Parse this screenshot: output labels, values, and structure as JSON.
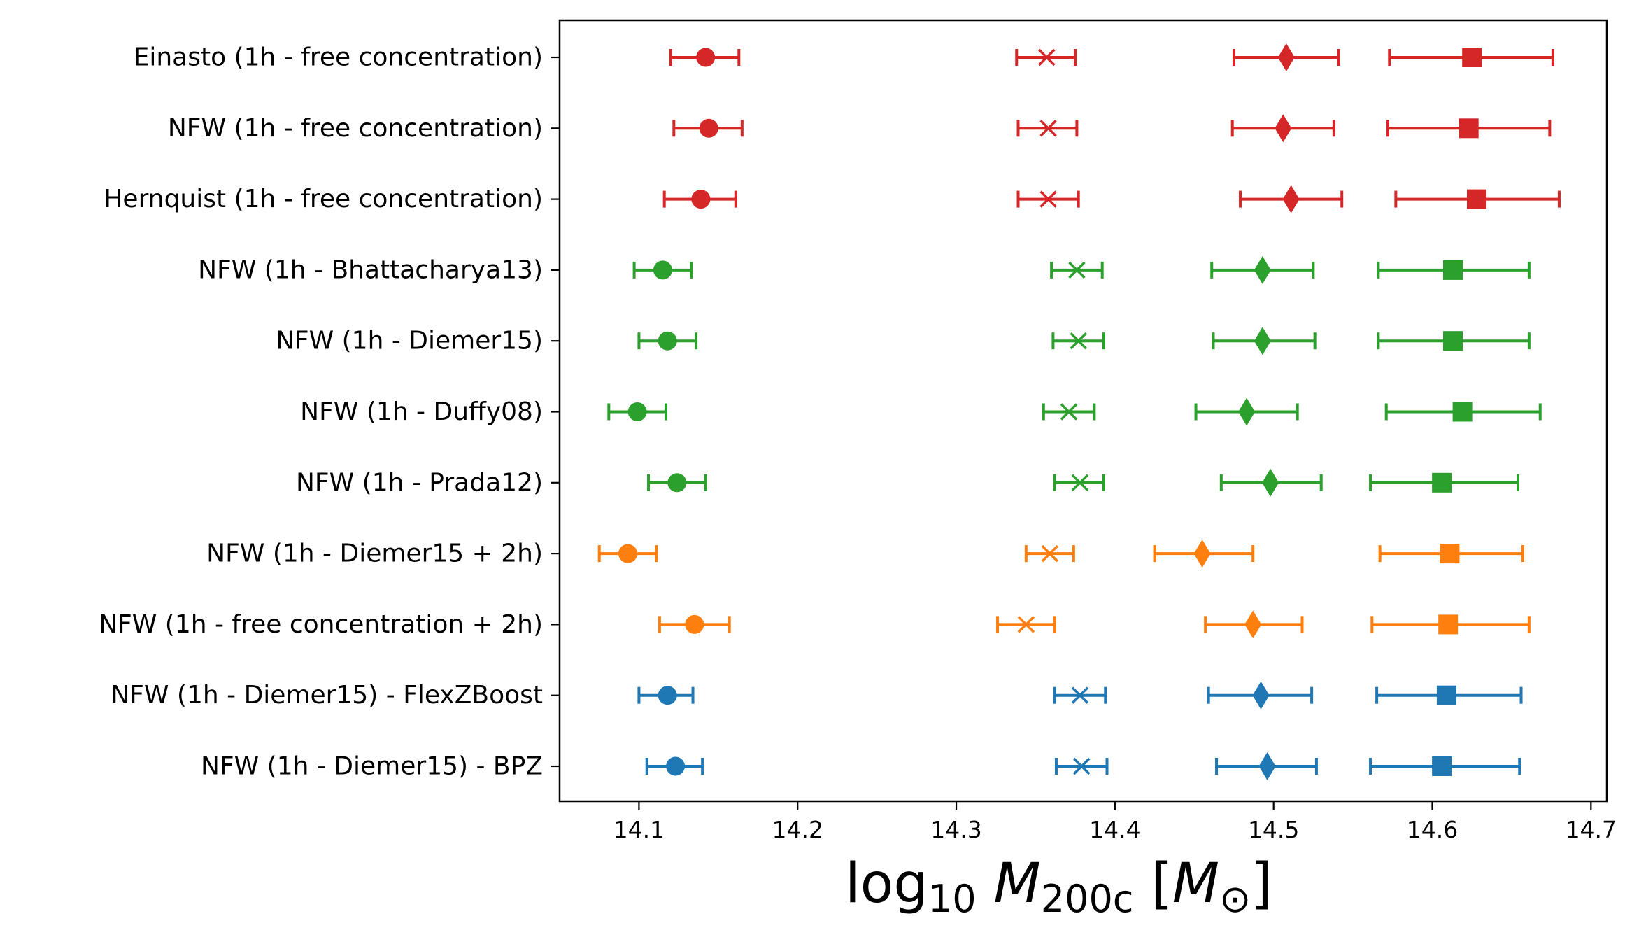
{
  "chart_data": {
    "type": "errorbar",
    "xlabel": {
      "prefix": "log",
      "prefix_sub": "10",
      "var": "M",
      "var_sub": "200c",
      "unit_open": " [",
      "unit_var": "M",
      "unit_sub": "⊙",
      "unit_close": "]"
    },
    "xlim": [
      14.05,
      14.71
    ],
    "xticks": [
      14.1,
      14.2,
      14.3,
      14.4,
      14.5,
      14.6,
      14.7
    ],
    "xtick_labels": [
      "14.1",
      "14.2",
      "14.3",
      "14.4",
      "14.5",
      "14.6",
      "14.7"
    ],
    "categories": [
      "Einasto (1h - free concentration)",
      "NFW (1h - free concentration)",
      "Hernquist (1h - free concentration)",
      "NFW (1h - Bhattacharya13)",
      "NFW (1h - Diemer15)",
      "NFW (1h - Duffy08)",
      "NFW (1h - Prada12)",
      "NFW (1h - Diemer15 + 2h)",
      "NFW (1h - free concentration + 2h)",
      "NFW (1h - Diemer15) - FlexZBoost",
      "NFW (1h - Diemer15) - BPZ"
    ],
    "colors": [
      "#d62728",
      "#d62728",
      "#d62728",
      "#2ca02c",
      "#2ca02c",
      "#2ca02c",
      "#2ca02c",
      "#ff7f0e",
      "#ff7f0e",
      "#1f77b4",
      "#1f77b4"
    ],
    "series": [
      {
        "marker": "circle",
        "values": [
          14.142,
          14.144,
          14.139,
          14.115,
          14.118,
          14.099,
          14.124,
          14.093,
          14.135,
          14.118,
          14.123
        ],
        "lo": [
          14.12,
          14.122,
          14.116,
          14.097,
          14.1,
          14.081,
          14.106,
          14.075,
          14.113,
          14.1,
          14.105
        ],
        "hi": [
          14.163,
          14.165,
          14.161,
          14.133,
          14.136,
          14.117,
          14.142,
          14.111,
          14.157,
          14.134,
          14.14
        ]
      },
      {
        "marker": "x",
        "values": [
          14.357,
          14.358,
          14.358,
          14.376,
          14.377,
          14.371,
          14.378,
          14.359,
          14.344,
          14.378,
          14.379
        ],
        "lo": [
          14.338,
          14.339,
          14.339,
          14.36,
          14.361,
          14.355,
          14.362,
          14.344,
          14.326,
          14.362,
          14.363
        ],
        "hi": [
          14.375,
          14.376,
          14.377,
          14.392,
          14.393,
          14.387,
          14.393,
          14.374,
          14.362,
          14.394,
          14.395
        ]
      },
      {
        "marker": "diamond",
        "values": [
          14.508,
          14.506,
          14.511,
          14.493,
          14.493,
          14.483,
          14.498,
          14.455,
          14.487,
          14.492,
          14.496
        ],
        "lo": [
          14.475,
          14.474,
          14.479,
          14.461,
          14.462,
          14.451,
          14.467,
          14.425,
          14.457,
          14.459,
          14.464
        ],
        "hi": [
          14.541,
          14.538,
          14.543,
          14.525,
          14.526,
          14.515,
          14.53,
          14.487,
          14.518,
          14.524,
          14.527
        ]
      },
      {
        "marker": "square",
        "values": [
          14.625,
          14.623,
          14.628,
          14.613,
          14.613,
          14.619,
          14.606,
          14.611,
          14.61,
          14.609,
          14.606
        ],
        "lo": [
          14.573,
          14.572,
          14.577,
          14.566,
          14.566,
          14.571,
          14.561,
          14.567,
          14.562,
          14.565,
          14.561
        ],
        "hi": [
          14.676,
          14.674,
          14.68,
          14.661,
          14.661,
          14.668,
          14.654,
          14.657,
          14.661,
          14.656,
          14.655
        ]
      }
    ],
    "grid": false,
    "legend": "none"
  }
}
